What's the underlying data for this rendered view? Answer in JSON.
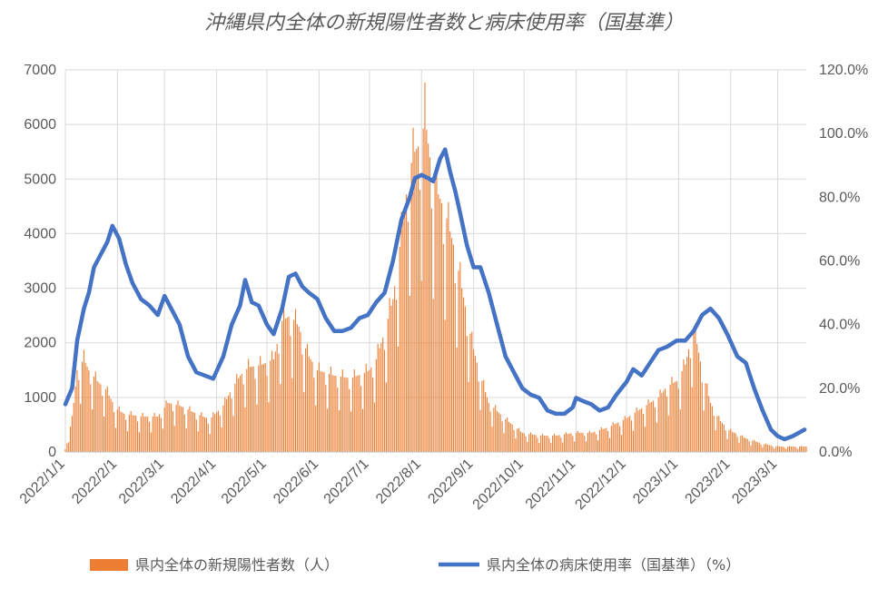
{
  "chart_data": {
    "type": "bar",
    "title": "沖縄県内全体の新規陽性者数と病床使用率（国基準）",
    "xlabel": "",
    "ylabel": "",
    "ylim": [
      0,
      7000
    ],
    "y2lim": [
      0,
      120
    ],
    "y_ticks": [
      "0",
      "1000",
      "2000",
      "3000",
      "4000",
      "5000",
      "6000",
      "7000"
    ],
    "y2_ticks": [
      "0.0%",
      "20.0%",
      "40.0%",
      "60.0%",
      "80.0%",
      "100.0%",
      "120.0%"
    ],
    "x_ticks": [
      "2022/1/1",
      "2022/2/1",
      "2022/3/1",
      "2022/4/1",
      "2022/5/1",
      "2022/6/1",
      "2022/7/1",
      "2022/8/1",
      "2022/9/1",
      "2022/10/1",
      "2022/11/1",
      "2022/12/1",
      "2023/1/1",
      "2023/2/1",
      "2023/3/1"
    ],
    "grid": true,
    "legend": "bottom",
    "series": [
      {
        "name": "県内全体の新規陽性者数（人）",
        "type": "bar",
        "axis": "left",
        "color": "#ED7D31",
        "points": [
          [
            "2022-01-01",
            50
          ],
          [
            "2022-01-05",
            600
          ],
          [
            "2022-01-08",
            1500
          ],
          [
            "2022-01-12",
            1700
          ],
          [
            "2022-01-15",
            1500
          ],
          [
            "2022-01-20",
            1300
          ],
          [
            "2022-01-25",
            1150
          ],
          [
            "2022-01-31",
            800
          ],
          [
            "2022-02-05",
            700
          ],
          [
            "2022-02-15",
            650
          ],
          [
            "2022-02-25",
            650
          ],
          [
            "2022-03-03",
            900
          ],
          [
            "2022-03-10",
            850
          ],
          [
            "2022-03-20",
            700
          ],
          [
            "2022-03-28",
            600
          ],
          [
            "2022-04-05",
            850
          ],
          [
            "2022-04-10",
            1150
          ],
          [
            "2022-04-15",
            1400
          ],
          [
            "2022-04-20",
            1550
          ],
          [
            "2022-04-28",
            1600
          ],
          [
            "2022-05-05",
            1700
          ],
          [
            "2022-05-10",
            2400
          ],
          [
            "2022-05-15",
            2500
          ],
          [
            "2022-05-20",
            2300
          ],
          [
            "2022-05-25",
            1800
          ],
          [
            "2022-05-31",
            1500
          ],
          [
            "2022-06-10",
            1400
          ],
          [
            "2022-06-20",
            1350
          ],
          [
            "2022-06-28",
            1450
          ],
          [
            "2022-07-01",
            1500
          ],
          [
            "2022-07-05",
            1700
          ],
          [
            "2022-07-10",
            2200
          ],
          [
            "2022-07-15",
            2800
          ],
          [
            "2022-07-20",
            4000
          ],
          [
            "2022-07-25",
            5200
          ],
          [
            "2022-07-28",
            5500
          ],
          [
            "2022-08-01",
            5700
          ],
          [
            "2022-08-03",
            6150
          ],
          [
            "2022-08-06",
            5400
          ],
          [
            "2022-08-10",
            4800
          ],
          [
            "2022-08-15",
            4400
          ],
          [
            "2022-08-20",
            3800
          ],
          [
            "2022-08-25",
            3000
          ],
          [
            "2022-08-31",
            2000
          ],
          [
            "2022-09-05",
            1400
          ],
          [
            "2022-09-10",
            900
          ],
          [
            "2022-09-20",
            600
          ],
          [
            "2022-09-30",
            350
          ],
          [
            "2022-10-10",
            300
          ],
          [
            "2022-10-20",
            300
          ],
          [
            "2022-10-31",
            350
          ],
          [
            "2022-11-10",
            350
          ],
          [
            "2022-11-20",
            450
          ],
          [
            "2022-11-30",
            600
          ],
          [
            "2022-12-10",
            800
          ],
          [
            "2022-12-20",
            1000
          ],
          [
            "2022-12-25",
            1200
          ],
          [
            "2022-12-31",
            1300
          ],
          [
            "2023-01-05",
            1600
          ],
          [
            "2023-01-10",
            2300
          ],
          [
            "2023-01-15",
            1500
          ],
          [
            "2023-01-20",
            900
          ],
          [
            "2023-01-25",
            600
          ],
          [
            "2023-01-31",
            400
          ],
          [
            "2023-02-10",
            250
          ],
          [
            "2023-02-20",
            150
          ],
          [
            "2023-03-01",
            100
          ],
          [
            "2023-03-10",
            100
          ],
          [
            "2023-03-17",
            100
          ]
        ]
      },
      {
        "name": "県内全体の病床使用率（国基準）（%）",
        "type": "line",
        "axis": "right",
        "color": "#4472C4",
        "points": [
          [
            "2022-01-01",
            15
          ],
          [
            "2022-01-05",
            20
          ],
          [
            "2022-01-08",
            35
          ],
          [
            "2022-01-12",
            45
          ],
          [
            "2022-01-15",
            50
          ],
          [
            "2022-01-18",
            58
          ],
          [
            "2022-01-22",
            62
          ],
          [
            "2022-01-26",
            66
          ],
          [
            "2022-01-29",
            71
          ],
          [
            "2022-02-02",
            67
          ],
          [
            "2022-02-06",
            59
          ],
          [
            "2022-02-10",
            53
          ],
          [
            "2022-02-15",
            48
          ],
          [
            "2022-02-20",
            46
          ],
          [
            "2022-02-25",
            43
          ],
          [
            "2022-03-01",
            49
          ],
          [
            "2022-03-05",
            45
          ],
          [
            "2022-03-10",
            40
          ],
          [
            "2022-03-15",
            30
          ],
          [
            "2022-03-20",
            25
          ],
          [
            "2022-03-25",
            24
          ],
          [
            "2022-03-30",
            23
          ],
          [
            "2022-04-05",
            30
          ],
          [
            "2022-04-10",
            40
          ],
          [
            "2022-04-15",
            46
          ],
          [
            "2022-04-18",
            54
          ],
          [
            "2022-04-22",
            47
          ],
          [
            "2022-04-26",
            46
          ],
          [
            "2022-05-01",
            40
          ],
          [
            "2022-05-05",
            37
          ],
          [
            "2022-05-10",
            45
          ],
          [
            "2022-05-14",
            55
          ],
          [
            "2022-05-18",
            56
          ],
          [
            "2022-05-22",
            52
          ],
          [
            "2022-05-26",
            50
          ],
          [
            "2022-05-31",
            48
          ],
          [
            "2022-06-05",
            42
          ],
          [
            "2022-06-10",
            38
          ],
          [
            "2022-06-15",
            38
          ],
          [
            "2022-06-20",
            39
          ],
          [
            "2022-06-25",
            42
          ],
          [
            "2022-06-30",
            43
          ],
          [
            "2022-07-05",
            47
          ],
          [
            "2022-07-10",
            50
          ],
          [
            "2022-07-15",
            60
          ],
          [
            "2022-07-20",
            73
          ],
          [
            "2022-07-25",
            80
          ],
          [
            "2022-07-28",
            86
          ],
          [
            "2022-08-01",
            87
          ],
          [
            "2022-08-05",
            86
          ],
          [
            "2022-08-08",
            85
          ],
          [
            "2022-08-12",
            92
          ],
          [
            "2022-08-15",
            95
          ],
          [
            "2022-08-18",
            88
          ],
          [
            "2022-08-21",
            82
          ],
          [
            "2022-08-24",
            75
          ],
          [
            "2022-08-28",
            65
          ],
          [
            "2022-09-01",
            58
          ],
          [
            "2022-09-05",
            58
          ],
          [
            "2022-09-10",
            50
          ],
          [
            "2022-09-15",
            40
          ],
          [
            "2022-09-20",
            30
          ],
          [
            "2022-09-25",
            25
          ],
          [
            "2022-09-30",
            20
          ],
          [
            "2022-10-05",
            18
          ],
          [
            "2022-10-10",
            17
          ],
          [
            "2022-10-15",
            13
          ],
          [
            "2022-10-20",
            12
          ],
          [
            "2022-10-25",
            12
          ],
          [
            "2022-10-30",
            14
          ],
          [
            "2022-11-01",
            17
          ],
          [
            "2022-11-05",
            16
          ],
          [
            "2022-11-10",
            15
          ],
          [
            "2022-11-15",
            13
          ],
          [
            "2022-11-20",
            14
          ],
          [
            "2022-11-25",
            18
          ],
          [
            "2022-12-01",
            22
          ],
          [
            "2022-12-05",
            26
          ],
          [
            "2022-12-10",
            24
          ],
          [
            "2022-12-15",
            28
          ],
          [
            "2022-12-20",
            32
          ],
          [
            "2022-12-25",
            33
          ],
          [
            "2022-12-31",
            35
          ],
          [
            "2023-01-05",
            35
          ],
          [
            "2023-01-10",
            38
          ],
          [
            "2023-01-15",
            43
          ],
          [
            "2023-01-20",
            45
          ],
          [
            "2023-01-25",
            42
          ],
          [
            "2023-01-30",
            37
          ],
          [
            "2023-02-05",
            30
          ],
          [
            "2023-02-10",
            28
          ],
          [
            "2023-02-15",
            20
          ],
          [
            "2023-02-20",
            13
          ],
          [
            "2023-02-25",
            7
          ],
          [
            "2023-03-01",
            5
          ],
          [
            "2023-03-05",
            4
          ],
          [
            "2023-03-10",
            5
          ],
          [
            "2023-03-17",
            7
          ]
        ]
      }
    ]
  }
}
